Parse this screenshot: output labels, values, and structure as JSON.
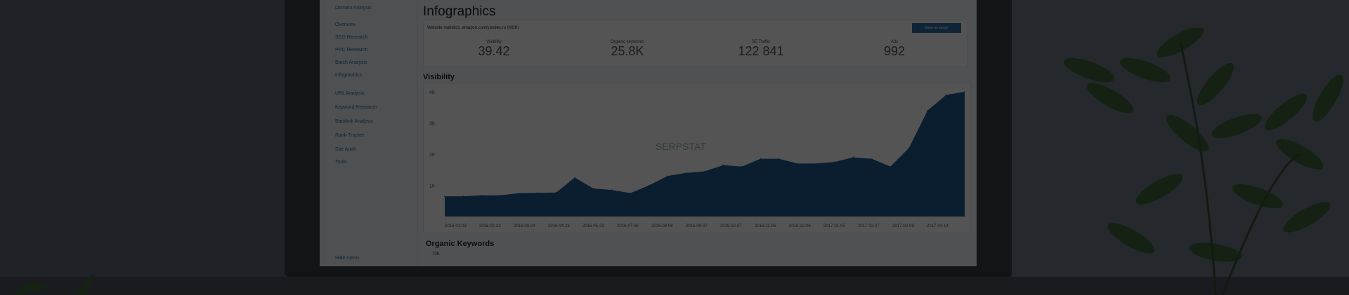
{
  "sidebar": {
    "items": [
      {
        "label": "Domain Analysis"
      },
      {
        "label": "Overview"
      },
      {
        "label": "SEO Research"
      },
      {
        "label": "PPC Research"
      },
      {
        "label": "Batch Analysis"
      },
      {
        "label": "Infographics"
      },
      {
        "label": "URL Analysis"
      },
      {
        "label": "Keyword Research"
      },
      {
        "label": "Backlink Analysis"
      },
      {
        "label": "Rank Tracker"
      },
      {
        "label": "Site Audit"
      },
      {
        "label": "Tools"
      }
    ],
    "hide": "Hide menu"
  },
  "page": {
    "title": "Infographics",
    "site": "Website statistics: amazon.com/yandex.ru (MSK)",
    "button": "Save as image"
  },
  "stats": [
    {
      "label": "Visibility",
      "value": "39.42"
    },
    {
      "label": "Organic keywords",
      "value": "25.8K"
    },
    {
      "label": "SE Traffic",
      "value": "122 841"
    },
    {
      "label": "Ads",
      "value": "992"
    }
  ],
  "visibility": {
    "title": "Visibility",
    "watermark": "SERPSTAT",
    "yticks": [
      "40",
      "30",
      "20",
      "10"
    ],
    "xticks": [
      "2016-01-03",
      "2016-02-23",
      "2016-03-24",
      "2016-04-23",
      "2016-05-23",
      "2016-07-06",
      "2016-08-08",
      "2016-09-07",
      "2016-10-07",
      "2016-11-06",
      "2016-12-06",
      "2017-01-05",
      "2017-02-07",
      "2017-03-09",
      "2017-04-14"
    ],
    "ylim": [
      0,
      40
    ],
    "values": [
      6.5,
      6.5,
      6.8,
      6.8,
      7.5,
      7.6,
      7.7,
      12.5,
      9,
      8.5,
      7.5,
      10,
      13,
      14,
      14.5,
      16.5,
      16,
      18.5,
      18.5,
      17,
      17,
      17.5,
      19,
      18.5,
      16,
      22,
      34,
      39,
      40
    ],
    "color": "#1f5c8f"
  },
  "organic": {
    "title": "Organic Keywords",
    "ytick": "70K"
  },
  "colors": {
    "overlay": "#181b21",
    "leaf": "#2f4a2a"
  }
}
